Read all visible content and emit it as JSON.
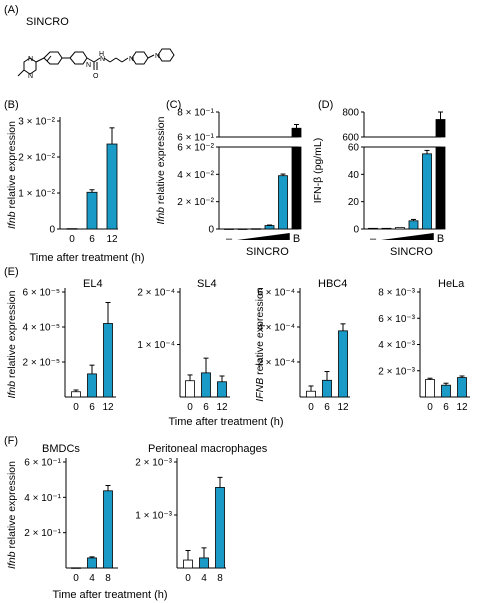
{
  "colors": {
    "treated": "#1a9bc7",
    "untreated": "#ffffff",
    "positive_control": "#000000",
    "axis": "#000000"
  },
  "panels": {
    "A": {
      "label": "(A)",
      "compound_name": "SINCRO"
    },
    "B": {
      "label": "(B)"
    },
    "C": {
      "label": "(C)"
    },
    "D": {
      "label": "(D)"
    },
    "E": {
      "label": "(E)"
    },
    "F": {
      "label": "(F)"
    }
  },
  "shared": {
    "time_label": "Time after treatment (h)",
    "dash_label": "–",
    "sincro_label": "SINCRO",
    "b_label": "B"
  },
  "chart_data": [
    {
      "id": "B",
      "type": "bar",
      "ylabel": "Ifnb relative expression",
      "categories": [
        "0",
        "6",
        "12"
      ],
      "xlabel": "Time after treatment (h)",
      "values": [
        0.0001,
        0.0102,
        0.0236
      ],
      "errors": [
        0,
        0.0007,
        0.0045
      ],
      "fills": [
        "#ffffff",
        "#1a9bc7",
        "#1a9bc7"
      ],
      "yticks": [
        "0",
        "1 × 10⁻²",
        "2 × 10⁻²",
        "3 × 10⁻²"
      ],
      "ylim": [
        0,
        0.03
      ]
    },
    {
      "id": "C",
      "type": "bar",
      "broken_axis": true,
      "ylabel": "Ifnb relative expression",
      "categories": [
        "–",
        "",
        "",
        "",
        "",
        "B"
      ],
      "xlabel": "SINCRO",
      "values": [
        0.0001,
        0.0001,
        0.0002,
        0.0025,
        0.039,
        0.67
      ],
      "errors": [
        0,
        0,
        0,
        0.0004,
        0.0012,
        0.03
      ],
      "fills": [
        "#ffffff",
        "#ffffff",
        "#ffffff",
        "#1a9bc7",
        "#1a9bc7",
        "#000000"
      ],
      "yticks_lower": [
        "0",
        "2 × 10⁻²",
        "4 × 10⁻²",
        "6 × 10⁻²"
      ],
      "ylim_lower": [
        0,
        0.06
      ],
      "yticks_upper": [
        "6 × 10⁻¹",
        "8 × 10⁻¹"
      ],
      "ylim_upper": [
        0.6,
        0.8
      ]
    },
    {
      "id": "D",
      "type": "bar",
      "broken_axis": true,
      "ylabel": "IFN-β (pg/mL)",
      "categories": [
        "–",
        "",
        "",
        "",
        "",
        "B"
      ],
      "xlabel": "SINCRO",
      "values": [
        0.5,
        0.5,
        1,
        6,
        55,
        740
      ],
      "errors": [
        0,
        0,
        0,
        1,
        2.5,
        60
      ],
      "fills": [
        "#ffffff",
        "#ffffff",
        "#ffffff",
        "#1a9bc7",
        "#1a9bc7",
        "#000000"
      ],
      "yticks_lower": [
        "0",
        "20",
        "40",
        "60"
      ],
      "ylim_lower": [
        0,
        60
      ],
      "yticks_upper": [
        "600",
        "800"
      ],
      "ylim_upper": [
        600,
        800
      ]
    },
    {
      "id": "E1",
      "type": "bar",
      "title": "EL4",
      "ylabel": "Ifnb relative expression",
      "categories": [
        "0",
        "6",
        "12"
      ],
      "values": [
        3e-06,
        1.32e-05,
        4.2e-05
      ],
      "errors": [
        1e-06,
        5e-06,
        1.2e-05
      ],
      "fills": [
        "#ffffff",
        "#1a9bc7",
        "#1a9bc7"
      ],
      "yticks": [
        "2 × 10⁻⁵",
        "4 × 10⁻⁵",
        "6 × 10⁻⁵"
      ],
      "ylim": [
        0,
        6e-05
      ]
    },
    {
      "id": "E2",
      "type": "bar",
      "title": "SL4",
      "categories": [
        "0",
        "6",
        "12"
      ],
      "values": [
        3.1e-05,
        4.6e-05,
        2.9e-05
      ],
      "errors": [
        1.1e-05,
        2.8e-05,
        1.1e-05
      ],
      "fills": [
        "#ffffff",
        "#1a9bc7",
        "#1a9bc7"
      ],
      "yticks": [
        "1 × 10⁻⁴",
        "2 × 10⁻⁴"
      ],
      "ylim": [
        0,
        0.0002
      ]
    },
    {
      "id": "E3",
      "type": "bar",
      "title": "HBC4",
      "ylabel": "IFNB relative expression",
      "categories": [
        "0",
        "6",
        "12"
      ],
      "values": [
        3.3e-05,
        9.55e-05,
        0.000378
      ],
      "errors": [
        3e-05,
        5e-05,
        4e-05
      ],
      "fills": [
        "#ffffff",
        "#1a9bc7",
        "#1a9bc7"
      ],
      "yticks": [
        "2 × 10⁻⁴",
        "4 × 10⁻⁴",
        "6 × 10⁻⁴"
      ],
      "ylim": [
        0,
        0.0006
      ]
    },
    {
      "id": "E4",
      "type": "bar",
      "title": "HeLa",
      "categories": [
        "0",
        "6",
        "12"
      ],
      "values": [
        0.00133,
        0.0009,
        0.00148
      ],
      "errors": [
        0.0001,
        0.00015,
        0.00012
      ],
      "fills": [
        "#ffffff",
        "#1a9bc7",
        "#1a9bc7"
      ],
      "yticks": [
        "2 × 10⁻³",
        "4 × 10⁻³",
        "6 × 10⁻³",
        "8 × 10⁻³"
      ],
      "ylim": [
        0,
        0.008
      ]
    },
    {
      "id": "F1",
      "type": "bar",
      "title": "BMDCs",
      "ylabel": "Ifnb relative expression",
      "categories": [
        "0",
        "4",
        "8"
      ],
      "values": [
        0.0012,
        0.057,
        0.437
      ],
      "errors": [
        0,
        0.006,
        0.03
      ],
      "fills": [
        "#ffffff",
        "#1a9bc7",
        "#1a9bc7"
      ],
      "yticks": [
        "2 × 10⁻¹",
        "4 × 10⁻¹",
        "6 × 10⁻¹"
      ],
      "ylim": [
        0,
        0.6
      ]
    },
    {
      "id": "F2",
      "type": "bar",
      "title": "Peritoneal macrophages",
      "categories": [
        "0",
        "4",
        "8"
      ],
      "values": [
        0.00015,
        0.00019,
        0.00152
      ],
      "errors": [
        0.00018,
        0.00019,
        0.00019
      ],
      "fills": [
        "#ffffff",
        "#1a9bc7",
        "#1a9bc7"
      ],
      "yticks": [
        "1 × 10⁻³",
        "2 × 10⁻³"
      ],
      "ylim": [
        0,
        0.002
      ]
    }
  ]
}
